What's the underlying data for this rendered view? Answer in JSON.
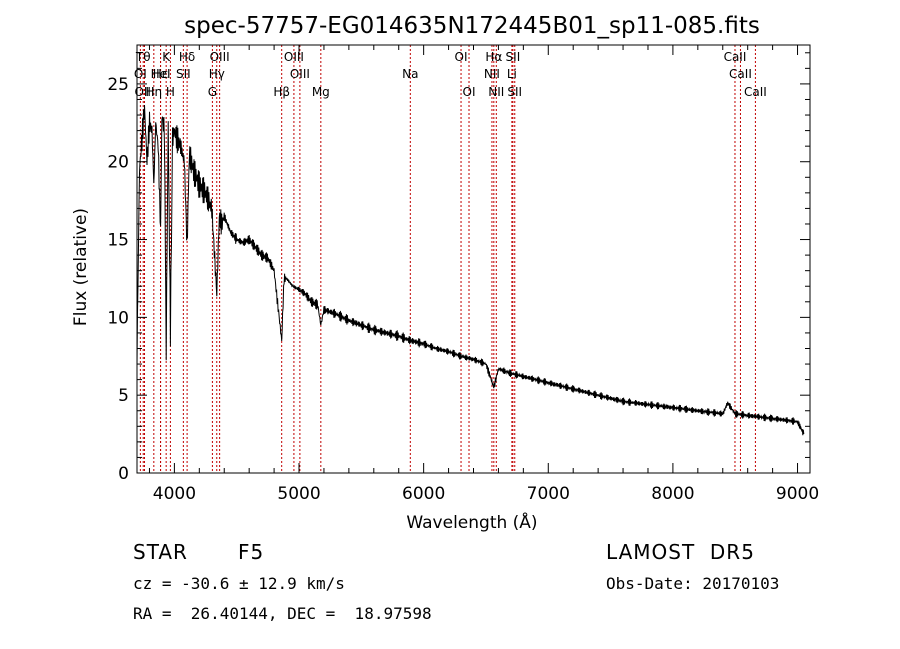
{
  "chart_data": {
    "type": "line",
    "title": "spec-57757-EG014635N172445B01_sp11-085.fits",
    "xlabel": "Wavelength (Å)",
    "ylabel": "Flux (relative)",
    "xlim": [
      3700,
      9100
    ],
    "ylim": [
      0,
      27.5
    ],
    "x_ticks": [
      4000,
      5000,
      6000,
      7000,
      8000,
      9000
    ],
    "y_ticks": [
      0,
      5,
      10,
      15,
      20,
      25
    ],
    "grid": false,
    "series": [
      {
        "x": [
          3700,
          3720,
          3740,
          3760,
          3780,
          3800,
          3820,
          3835,
          3850,
          3870,
          3889,
          3900,
          3920,
          3934,
          3950,
          3968,
          3985,
          4000,
          4020,
          4050,
          4080,
          4102,
          4120,
          4150,
          4200,
          4250,
          4300,
          4340,
          4360,
          4380,
          4400,
          4450,
          4500,
          4550,
          4600,
          4650,
          4700,
          4750,
          4800,
          4861,
          4880,
          4900,
          4950,
          5000,
          5050,
          5100,
          5150,
          5175,
          5200,
          5300,
          5400,
          5500,
          5600,
          5700,
          5800,
          5900,
          6000,
          6100,
          6200,
          6300,
          6400,
          6500,
          6563,
          6600,
          6700,
          6800,
          6900,
          7000,
          7100,
          7200,
          7300,
          7400,
          7500,
          7600,
          7700,
          7800,
          7900,
          8000,
          8100,
          8200,
          8300,
          8400,
          8440,
          8500,
          8600,
          8700,
          8800,
          8900,
          9000,
          9050
        ],
        "values": [
          7.5,
          19.5,
          21.5,
          23.5,
          20.0,
          22.5,
          22.0,
          18.5,
          22.5,
          21.0,
          15.5,
          23.0,
          22.0,
          8.0,
          22.5,
          9.0,
          21.5,
          22.0,
          21.5,
          21.0,
          20.0,
          14.5,
          20.5,
          19.5,
          18.5,
          18.0,
          17.0,
          11.5,
          16.5,
          16.0,
          16.5,
          15.5,
          15.0,
          14.8,
          15.0,
          14.5,
          14.0,
          13.8,
          13.0,
          8.5,
          12.5,
          12.5,
          12.0,
          11.8,
          11.5,
          11.0,
          10.8,
          9.5,
          10.5,
          10.2,
          9.8,
          9.5,
          9.2,
          9.0,
          8.8,
          8.5,
          8.3,
          8.0,
          7.8,
          7.5,
          7.3,
          7.0,
          5.5,
          6.7,
          6.4,
          6.2,
          6.0,
          5.8,
          5.6,
          5.4,
          5.2,
          5.0,
          4.8,
          4.6,
          4.5,
          4.4,
          4.3,
          4.2,
          4.1,
          4.0,
          3.9,
          3.8,
          4.5,
          3.8,
          3.7,
          3.6,
          3.5,
          3.4,
          3.3,
          2.5
        ]
      }
    ],
    "lines": [
      {
        "label": "Tθ",
        "wave": 3750,
        "row": 0
      },
      {
        "label": "OI",
        "wave": 3727,
        "row": 1
      },
      {
        "label": "OIII",
        "wave": 3760,
        "row": 2
      },
      {
        "label": "Hη",
        "wave": 3835,
        "row": 2
      },
      {
        "label": "Hε",
        "wave": 3889,
        "row": 1
      },
      {
        "label": "HeI",
        "wave": 3889,
        "row": 1
      },
      {
        "label": "K",
        "wave": 3934,
        "row": 0
      },
      {
        "label": "H",
        "wave": 3968,
        "row": 2
      },
      {
        "label": "SII",
        "wave": 4072,
        "row": 1
      },
      {
        "label": "Hδ",
        "wave": 4102,
        "row": 0
      },
      {
        "label": "OIII",
        "wave": 4363,
        "row": 0
      },
      {
        "label": "Hγ",
        "wave": 4340,
        "row": 1
      },
      {
        "label": "G",
        "wave": 4305,
        "row": 2
      },
      {
        "label": "Hβ",
        "wave": 4861,
        "row": 2
      },
      {
        "label": "OIII",
        "wave": 4959,
        "row": 0
      },
      {
        "label": "OIII",
        "wave": 5007,
        "row": 1
      },
      {
        "label": "Mg",
        "wave": 5175,
        "row": 2
      },
      {
        "label": "Na",
        "wave": 5893,
        "row": 1
      },
      {
        "label": "OI",
        "wave": 6300,
        "row": 0
      },
      {
        "label": "OI",
        "wave": 6364,
        "row": 2
      },
      {
        "label": "Hα",
        "wave": 6563,
        "row": 0
      },
      {
        "label": "NII",
        "wave": 6548,
        "row": 1
      },
      {
        "label": "NII",
        "wave": 6583,
        "row": 2
      },
      {
        "label": "SII",
        "wave": 6716,
        "row": 0
      },
      {
        "label": "Li",
        "wave": 6708,
        "row": 1
      },
      {
        "label": "SII",
        "wave": 6731,
        "row": 2
      },
      {
        "label": "CaII",
        "wave": 8498,
        "row": 0
      },
      {
        "label": "CaII",
        "wave": 8542,
        "row": 1
      },
      {
        "label": "CaII",
        "wave": 8662,
        "row": 2
      }
    ]
  },
  "info": {
    "class": "STAR",
    "subclass": "F5",
    "survey": "LAMOST  DR5",
    "redshift": "cz = -30.6 ± 12.9 km/s",
    "obs_date": "Obs-Date: 20170103",
    "coords": "RA =  26.40144, DEC =  18.97598"
  }
}
